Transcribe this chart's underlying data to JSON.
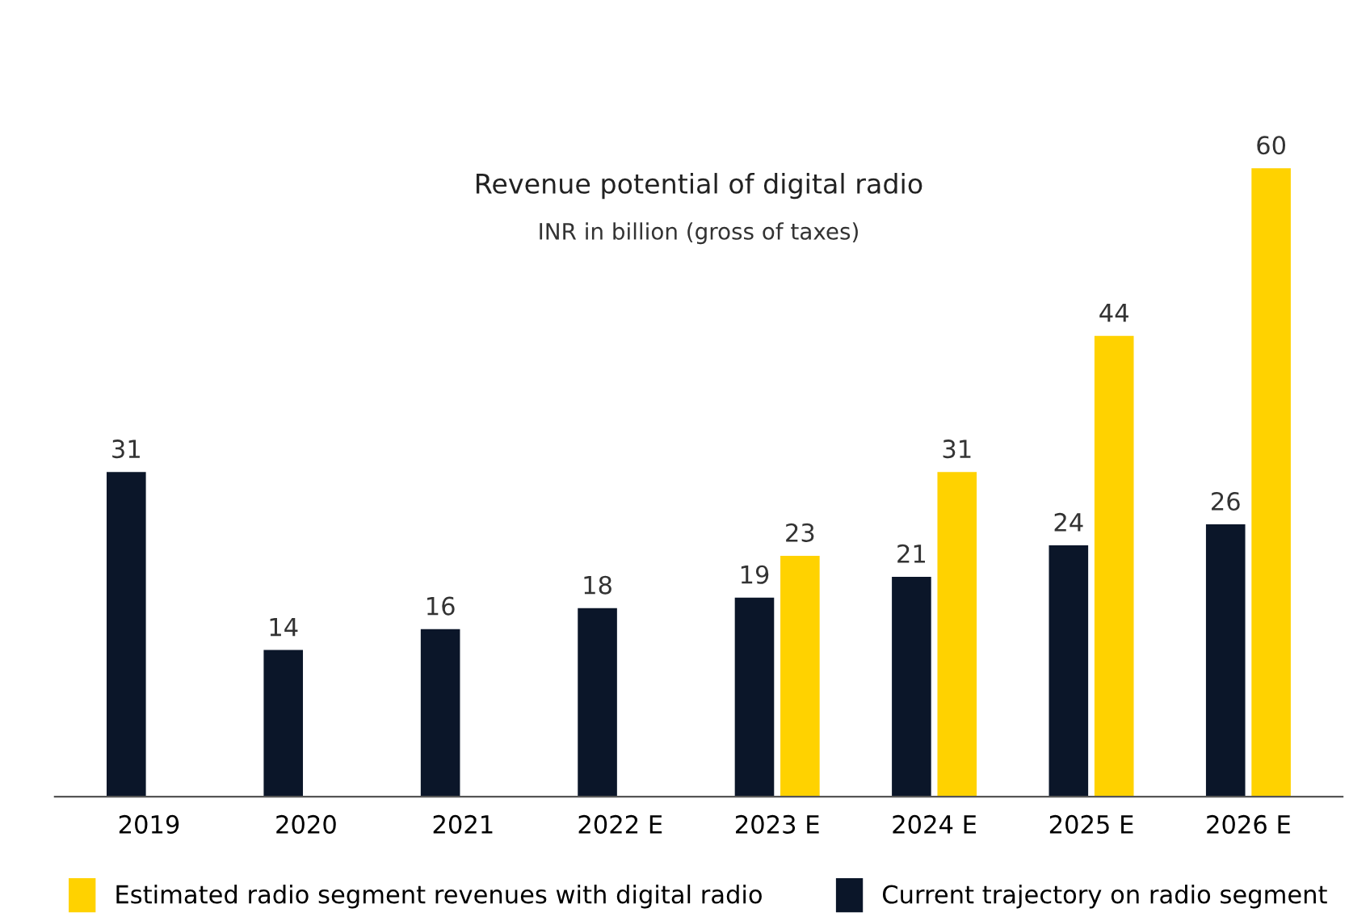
{
  "chart_data": {
    "type": "bar",
    "title": "Revenue potential of digital radio",
    "subtitle": "INR in billion (gross of taxes)",
    "categories": [
      "2019",
      "2020",
      "2021",
      "2022 E",
      "2023 E",
      "2024 E",
      "2025 E",
      "2026 E"
    ],
    "series": [
      {
        "name": "Current trajectory on radio segment",
        "color": "#0b1629",
        "values": [
          31,
          14,
          16,
          18,
          19,
          21,
          24,
          26
        ]
      },
      {
        "name": "Estimated radio segment revenues with digital radio",
        "color": "#ffd200",
        "values": [
          null,
          null,
          null,
          null,
          23,
          31,
          44,
          60
        ]
      }
    ],
    "data_labels": true,
    "legend": "bottom",
    "grid": false
  }
}
